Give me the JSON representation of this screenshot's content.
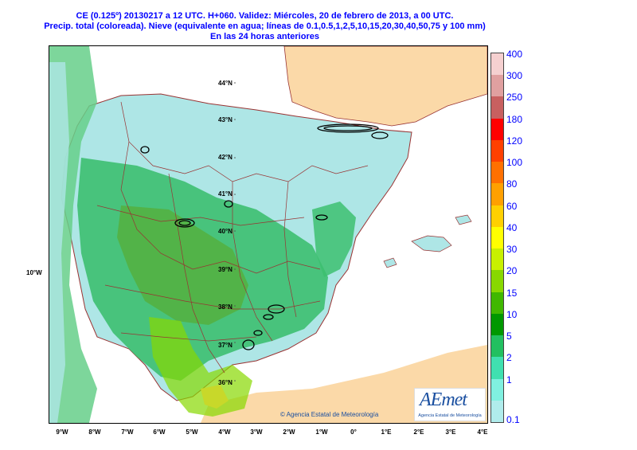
{
  "title": {
    "line1": "CE (0.125º) 20130217 a 12 UTC.  H+060.  Validez: Miércoles, 20 de febrero de 2013,  a  00 UTC.",
    "line2": "Precip. total (coloreada). Nieve (equivalente en agua; líneas de 0.1,0.5,1,2,5,10,15,20,30,40,50,75 y 100 mm)",
    "line3": "En las 24 horas anteriores"
  },
  "map": {
    "lat_labels": [
      "44°N",
      "43°N",
      "42°N",
      "41°N",
      "40°N",
      "39°N",
      "38°N",
      "37°N",
      "36°N"
    ],
    "lon_labels": [
      "9°W",
      "8°W",
      "7°W",
      "6°W",
      "5°W",
      "4°W",
      "3°W",
      "2°W",
      "1°W",
      "0°",
      "1°E",
      "2°E",
      "3°E",
      "4°E"
    ],
    "side_label": "10°W",
    "copyright": "© Agencia Estatal de Meteorología"
  },
  "legend": {
    "labels": [
      "400",
      "300",
      "250",
      "180",
      "120",
      "100",
      "80",
      "60",
      "40",
      "30",
      "20",
      "15",
      "10",
      "5",
      "2",
      "1",
      "0.1"
    ],
    "colors": [
      "#f5d0d0",
      "#e0a0a0",
      "#c86060",
      "#ff0000",
      "#ff4000",
      "#ff7000",
      "#ffa000",
      "#ffd000",
      "#ffff00",
      "#c8f000",
      "#88d800",
      "#40b800",
      "#009800",
      "#22c060",
      "#40e0b0",
      "#80f0e0",
      "#b0ecec"
    ]
  },
  "logo": {
    "mark": "AEmet",
    "subtitle": "Agencia Estatal de Meteorología"
  },
  "colors": {
    "title": "#0000ff",
    "sea": "#ffffff",
    "land_dry": "#fbd9a8",
    "precip_light": "#aee6e6",
    "precip_mid": "#3dbf70",
    "precip_heavy": "#55b040",
    "precip_max": "#c8d82a"
  }
}
